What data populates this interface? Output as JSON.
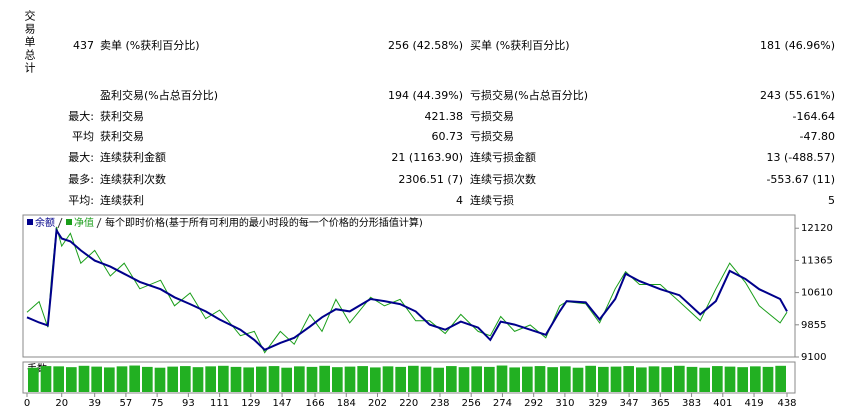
{
  "stats": {
    "side_label": "交易单总计",
    "rows": [
      {
        "prefix": "437",
        "name1": "卖单 (%获利百分比)",
        "value1": "256 (42.58%)",
        "name2": "买单 (%获利百分比)",
        "value2": "181 (46.96%)"
      },
      {
        "name1": "盈利交易(%占总百分比)",
        "value1": "194 (44.39%)",
        "name2": "亏损交易(%占总百分比)",
        "value2": "243 (55.61%)"
      },
      {
        "prefix": "最大:",
        "name1": "获利交易",
        "value1": "421.38",
        "name2": "亏损交易",
        "value2": "-164.64"
      },
      {
        "prefix": "平均",
        "name1": "获利交易",
        "value1": "60.73",
        "name2": "亏损交易",
        "value2": "-47.80"
      },
      {
        "prefix": "最大:",
        "name1": "连续获利金额",
        "value1": "21 (1163.90)",
        "name2": "连续亏损金额",
        "value2": "13 (-488.57)"
      },
      {
        "prefix": "最多:",
        "name1": "连续获利次数",
        "value1": "2306.51 (7)",
        "name2": "连续亏损次数",
        "value2": "-553.67 (11)"
      },
      {
        "prefix": "平均:",
        "name1": "连续获利",
        "value1": "4",
        "name2": "连续亏损",
        "value2": "5"
      }
    ]
  },
  "chart_data": {
    "type": "line",
    "subtitle": "每个即时价格(基于所有可利用的最小时段的每一个价格的分形插值计算)",
    "x": [
      0,
      7,
      12,
      14,
      17,
      20,
      25,
      31,
      39,
      48,
      56,
      65,
      77,
      85,
      94,
      103,
      111,
      123,
      131,
      137,
      146,
      154,
      163,
      170,
      178,
      186,
      198,
      206,
      215,
      224,
      232,
      241,
      250,
      260,
      267,
      273,
      281,
      290,
      299,
      307,
      311,
      322,
      330,
      339,
      345,
      353,
      365,
      376,
      388,
      397,
      405,
      414,
      422,
      434,
      438
    ],
    "series": [
      {
        "name": "余额",
        "color": "#00008b",
        "values": [
          10030,
          9910,
          9840,
          10690,
          12070,
          11880,
          11810,
          11600,
          11360,
          11220,
          11050,
          10860,
          10690,
          10500,
          10340,
          10170,
          9980,
          9740,
          9500,
          9270,
          9430,
          9550,
          9810,
          10030,
          10220,
          10170,
          10460,
          10410,
          10340,
          10170,
          9860,
          9740,
          9930,
          9790,
          9500,
          9930,
          9860,
          9740,
          9620,
          10170,
          10410,
          10380,
          9980,
          10460,
          11050,
          10880,
          10690,
          10550,
          10100,
          10410,
          11120,
          10930,
          10690,
          10460,
          10170
        ]
      },
      {
        "name": "净值",
        "color": "#1a9e1a",
        "values": [
          10150,
          10400,
          9800,
          10900,
          12150,
          11700,
          12000,
          11300,
          11600,
          11000,
          11300,
          10700,
          10900,
          10300,
          10600,
          10000,
          10200,
          9600,
          9700,
          9200,
          9700,
          9400,
          10100,
          9700,
          10450,
          9900,
          10500,
          10300,
          10450,
          9950,
          9950,
          9650,
          10100,
          9700,
          9600,
          10050,
          9700,
          9850,
          9550,
          10300,
          10400,
          10350,
          9900,
          10700,
          11100,
          10800,
          10800,
          10400,
          9950,
          10700,
          11300,
          10850,
          10300,
          9900,
          10150
        ]
      }
    ],
    "xlim": [
      0,
      438
    ],
    "xticks": [
      0,
      20,
      39,
      57,
      75,
      93,
      111,
      129,
      147,
      166,
      184,
      202,
      220,
      238,
      256,
      274,
      292,
      310,
      329,
      347,
      365,
      383,
      401,
      419,
      438
    ],
    "ylim": [
      9100,
      12430
    ],
    "yticks": [
      12120,
      11365,
      10610,
      9855,
      9100
    ],
    "volume": {
      "name": "手数",
      "color": "#22b022",
      "values": [
        90,
        96,
        95,
        92,
        97,
        94,
        91,
        95,
        98,
        93,
        90,
        94,
        96,
        92,
        95,
        97,
        93,
        91,
        94,
        96,
        90,
        95,
        93,
        97,
        92,
        94,
        96,
        91,
        95,
        93,
        97,
        94,
        90,
        96,
        92,
        95,
        93,
        98,
        91,
        94,
        96,
        92,
        95,
        90,
        97,
        93,
        94,
        96,
        91,
        95,
        92,
        97,
        93,
        90,
        96,
        94,
        92,
        95,
        93,
        97
      ]
    }
  }
}
